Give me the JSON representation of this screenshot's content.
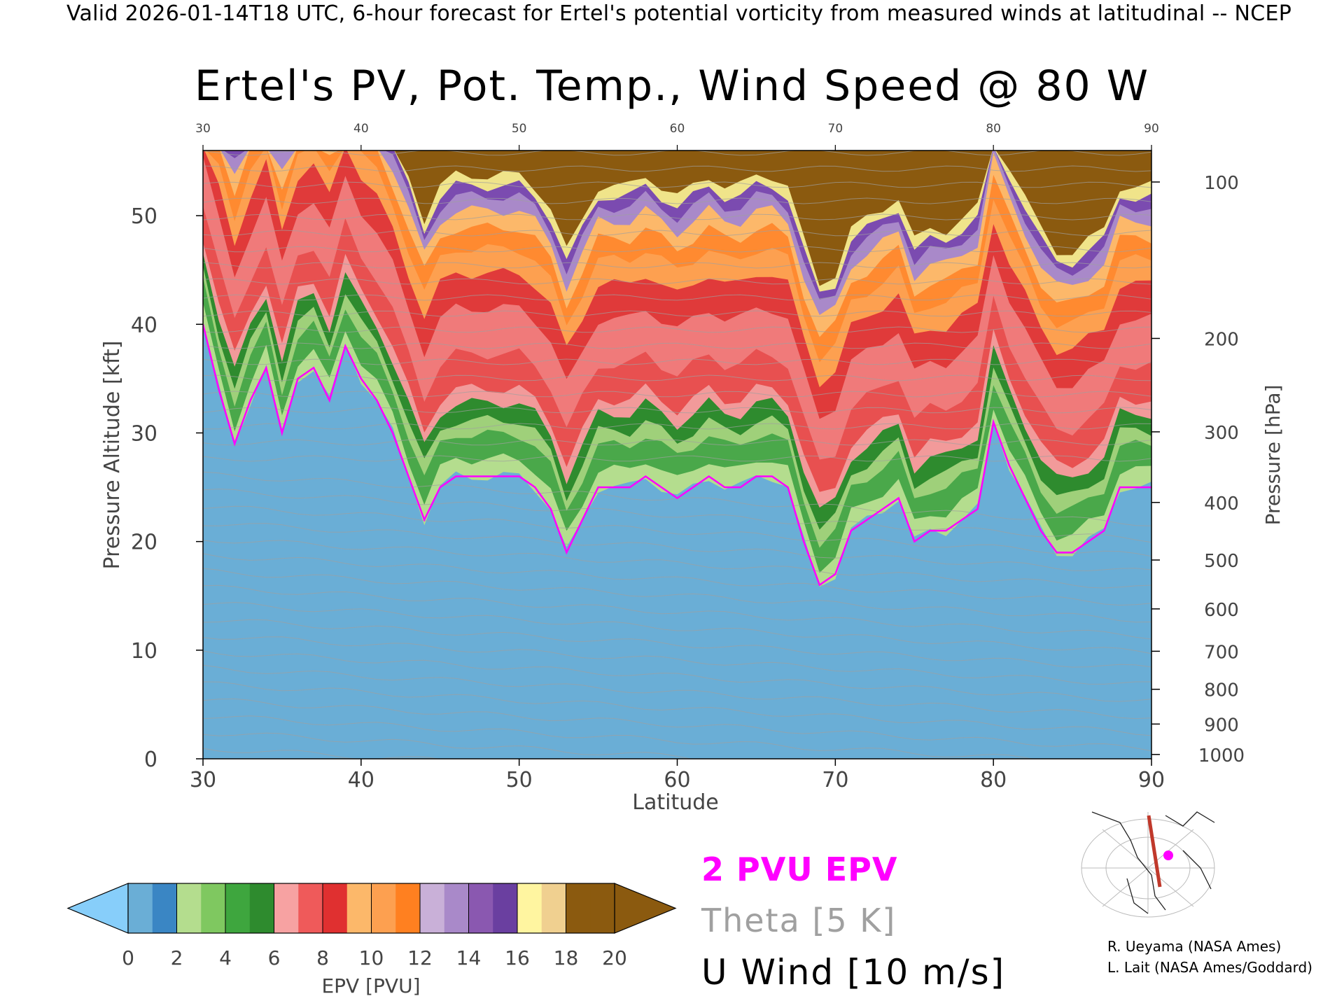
{
  "header": {
    "valid_line": "Valid 2026-01-14T18 UTC, 6-hour forecast for Ertel's potential vorticity from measured winds at latitudinal -- NCEP"
  },
  "chart_data": {
    "type": "heatmap",
    "title": "Ertel's PV, Pot. Temp., Wind Speed @ 80 W",
    "xlabel": "Latitude",
    "ylabel_left": "Pressure Altitude [kft]",
    "ylabel_right": "Pressure [hPa]",
    "xlim": [
      30,
      90
    ],
    "ylim": [
      0,
      56
    ],
    "x_ticks": [
      30,
      40,
      50,
      60,
      70,
      80,
      90
    ],
    "x_ticks_top": [
      30,
      40,
      50,
      60,
      70,
      80,
      90
    ],
    "y_ticks_left": [
      0,
      10,
      20,
      30,
      40,
      50
    ],
    "pressure_ticks": [
      {
        "hpa": 100,
        "kft": 53.1
      },
      {
        "hpa": 200,
        "kft": 38.7
      },
      {
        "hpa": 300,
        "kft": 30.1
      },
      {
        "hpa": 400,
        "kft": 23.6
      },
      {
        "hpa": 500,
        "kft": 18.3
      },
      {
        "hpa": 600,
        "kft": 13.8
      },
      {
        "hpa": 700,
        "kft": 9.9
      },
      {
        "hpa": 800,
        "kft": 6.4
      },
      {
        "hpa": 900,
        "kft": 3.2
      },
      {
        "hpa": 1000,
        "kft": 0.4
      }
    ],
    "pv_2pvu_tropopause": {
      "lat": [
        30,
        31,
        32,
        33,
        34,
        35,
        36,
        37,
        38,
        39,
        40,
        41,
        42,
        43,
        44,
        45,
        46,
        47,
        48,
        49,
        50,
        51,
        52,
        53,
        54,
        55,
        56,
        57,
        58,
        59,
        60,
        61,
        62,
        63,
        64,
        65,
        66,
        67,
        68,
        69,
        70,
        71,
        72,
        73,
        74,
        75,
        76,
        77,
        78,
        79,
        80,
        81,
        82,
        83,
        84,
        85,
        86,
        87,
        88,
        89,
        90
      ],
      "kft": [
        40,
        34,
        29,
        33,
        36,
        30,
        35,
        36,
        33,
        38,
        35,
        33,
        30,
        26,
        22,
        25,
        26,
        26,
        26,
        26,
        26,
        25,
        23,
        19,
        22,
        25,
        25,
        25,
        26,
        25,
        24,
        25,
        26,
        25,
        25,
        26,
        26,
        25,
        20,
        16,
        17,
        21,
        22,
        23,
        24,
        20,
        21,
        21,
        22,
        23,
        31,
        27,
        24,
        21,
        19,
        19,
        20,
        21,
        25,
        25,
        25
      ]
    },
    "colorbar": {
      "label": "EPV [PVU]",
      "ticks": [
        0,
        2,
        4,
        6,
        8,
        10,
        12,
        14,
        16,
        18,
        20
      ],
      "under_color": "#87cefa",
      "over_color": "#8b5a0f",
      "colors": [
        "#6aaed6",
        "#3a86c4",
        "#b4dd8e",
        "#7fc860",
        "#3ea63e",
        "#2e8b2e",
        "#f7a2a2",
        "#ef5a5a",
        "#e03030",
        "#fcb86a",
        "#fda050",
        "#ff8020",
        "#c9b0d8",
        "#a989c9",
        "#8a58b0",
        "#6a3fa0",
        "#fff5a0",
        "#f0d090",
        "#8b5a0f",
        "#8b5a0f"
      ]
    }
  },
  "legend": {
    "pv": "2 PVU EPV",
    "theta": "Theta [5 K]",
    "u": "U Wind [10 m/s]"
  },
  "credits": {
    "line1": "R. Ueyama (NASA Ames)",
    "line2": "L. Lait (NASA Ames/Goddard)"
  },
  "colors": {
    "tropopause": "#ff00ff",
    "theta": "#a0a0a0",
    "wind": "#000000"
  }
}
